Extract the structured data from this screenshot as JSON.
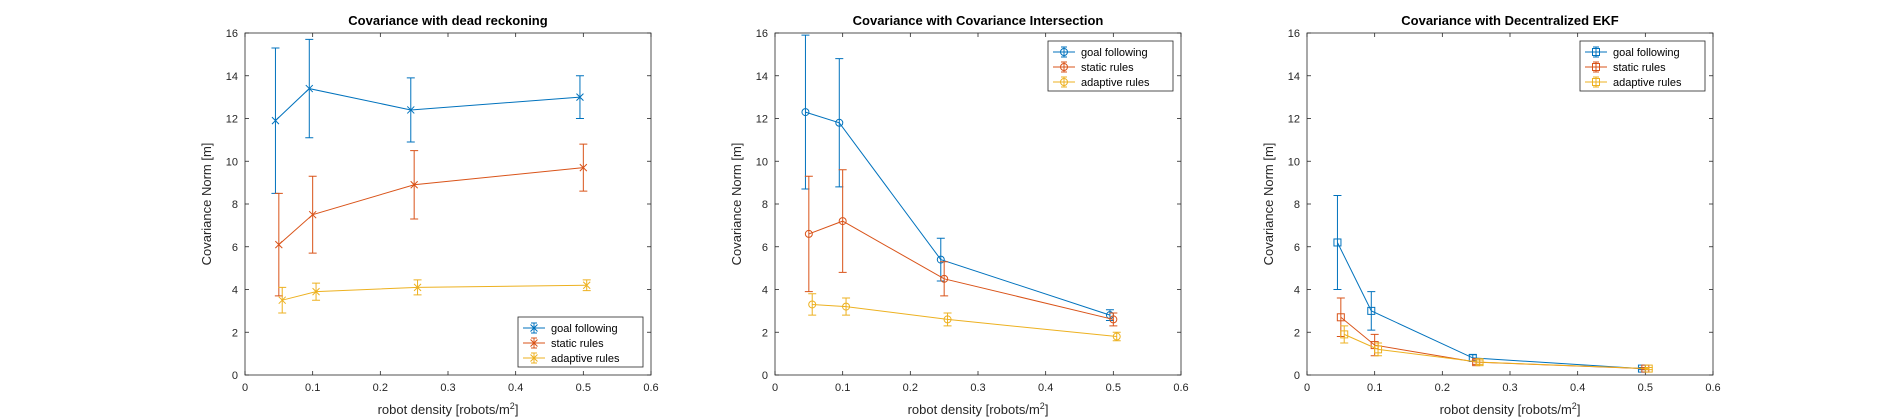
{
  "chart_data": [
    {
      "type": "line",
      "title": "Covariance with dead reckoning",
      "xlabel": "robot density [robots/m",
      "xlabel_sup": "2",
      "xlabel_end": "]",
      "ylabel": "Covariance Norm [m]",
      "xlim": [
        0,
        0.6
      ],
      "ylim": [
        0,
        16
      ],
      "xticks": [
        "0",
        "0.1",
        "0.2",
        "0.3",
        "0.4",
        "0.5",
        "0.6"
      ],
      "yticks": [
        "0",
        "2",
        "4",
        "6",
        "8",
        "10",
        "12",
        "14",
        "16"
      ],
      "marker": "x",
      "legend_position": "bottom-right",
      "grid": false,
      "series": [
        {
          "name": "goal following",
          "color": "#0072BD",
          "x": [
            0.045,
            0.095,
            0.245,
            0.495
          ],
          "y": [
            11.9,
            13.4,
            12.4,
            13.0
          ],
          "err": [
            3.4,
            2.3,
            1.5,
            1.0
          ]
        },
        {
          "name": "static rules",
          "color": "#D95319",
          "x": [
            0.05,
            0.1,
            0.25,
            0.5
          ],
          "y": [
            6.1,
            7.5,
            8.9,
            9.7
          ],
          "err": [
            2.4,
            1.8,
            1.6,
            1.1
          ]
        },
        {
          "name": "adaptive rules",
          "color": "#EDB120",
          "x": [
            0.055,
            0.105,
            0.255,
            0.505
          ],
          "y": [
            3.5,
            3.9,
            4.1,
            4.2
          ],
          "err": [
            0.6,
            0.4,
            0.35,
            0.25
          ]
        }
      ]
    },
    {
      "type": "line",
      "title": "Covariance with Covariance Intersection",
      "xlabel": "robot density [robots/m",
      "xlabel_sup": "2",
      "xlabel_end": "]",
      "ylabel": "Covariance Norm [m]",
      "xlim": [
        0,
        0.6
      ],
      "ylim": [
        0,
        16
      ],
      "xticks": [
        "0",
        "0.1",
        "0.2",
        "0.3",
        "0.4",
        "0.5",
        "0.6"
      ],
      "yticks": [
        "0",
        "2",
        "4",
        "6",
        "8",
        "10",
        "12",
        "14",
        "16"
      ],
      "marker": "o",
      "legend_position": "top-right",
      "grid": false,
      "series": [
        {
          "name": "goal following",
          "color": "#0072BD",
          "x": [
            0.045,
            0.095,
            0.245,
            0.495
          ],
          "y": [
            12.3,
            11.8,
            5.4,
            2.8
          ],
          "err": [
            3.6,
            3.0,
            1.0,
            0.25
          ]
        },
        {
          "name": "static rules",
          "color": "#D95319",
          "x": [
            0.05,
            0.1,
            0.25,
            0.5
          ],
          "y": [
            6.6,
            7.2,
            4.5,
            2.6
          ],
          "err": [
            2.7,
            2.4,
            0.8,
            0.3
          ]
        },
        {
          "name": "adaptive rules",
          "color": "#EDB120",
          "x": [
            0.055,
            0.105,
            0.255,
            0.505
          ],
          "y": [
            3.3,
            3.2,
            2.6,
            1.8
          ],
          "err": [
            0.5,
            0.4,
            0.3,
            0.2
          ]
        }
      ]
    },
    {
      "type": "line",
      "title": "Covariance with Decentralized EKF",
      "xlabel": "robot density [robots/m",
      "xlabel_sup": "2",
      "xlabel_end": "]",
      "ylabel": "Covariance Norm [m]",
      "xlim": [
        0,
        0.6
      ],
      "ylim": [
        0,
        16
      ],
      "xticks": [
        "0",
        "0.1",
        "0.2",
        "0.3",
        "0.4",
        "0.5",
        "0.6"
      ],
      "yticks": [
        "0",
        "2",
        "4",
        "6",
        "8",
        "10",
        "12",
        "14",
        "16"
      ],
      "marker": "s",
      "legend_position": "top-right",
      "grid": false,
      "series": [
        {
          "name": "goal following",
          "color": "#0072BD",
          "x": [
            0.045,
            0.095,
            0.245,
            0.495
          ],
          "y": [
            6.2,
            3.0,
            0.8,
            0.3
          ],
          "err": [
            2.2,
            0.9,
            0.15,
            0.05
          ]
        },
        {
          "name": "static rules",
          "color": "#D95319",
          "x": [
            0.05,
            0.1,
            0.25,
            0.5
          ],
          "y": [
            2.7,
            1.4,
            0.6,
            0.3
          ],
          "err": [
            0.9,
            0.5,
            0.1,
            0.05
          ]
        },
        {
          "name": "adaptive rules",
          "color": "#EDB120",
          "x": [
            0.055,
            0.105,
            0.255,
            0.505
          ],
          "y": [
            1.9,
            1.2,
            0.6,
            0.3
          ],
          "err": [
            0.4,
            0.3,
            0.1,
            0.05
          ]
        }
      ]
    }
  ]
}
